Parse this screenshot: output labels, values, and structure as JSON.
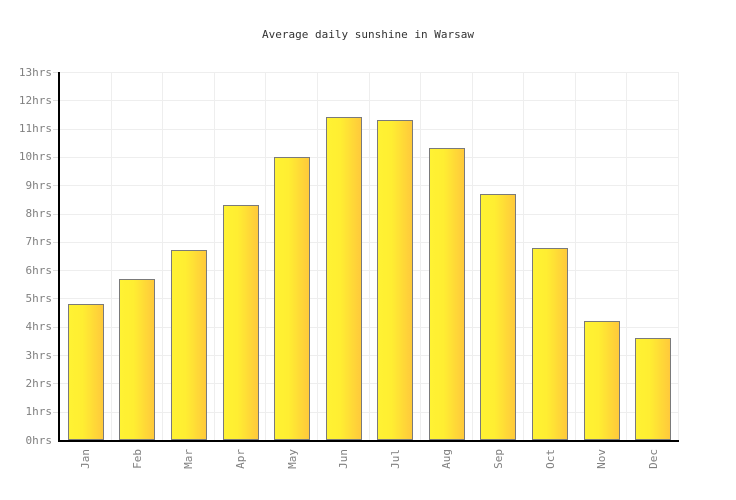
{
  "chart_data": {
    "type": "bar",
    "title": "Average daily sunshine in Warsaw",
    "categories": [
      "Jan",
      "Feb",
      "Mar",
      "Apr",
      "May",
      "Jun",
      "Jul",
      "Aug",
      "Sep",
      "Oct",
      "Nov",
      "Dec"
    ],
    "values": [
      4.8,
      5.7,
      6.7,
      8.3,
      10.0,
      11.4,
      11.3,
      10.3,
      8.7,
      6.8,
      4.2,
      3.6
    ],
    "unit": "hrs",
    "y_tick_labels": [
      "0hrs",
      "1hrs",
      "2hrs",
      "3hrs",
      "4hrs",
      "5hrs",
      "6hrs",
      "7hrs",
      "8hrs",
      "9hrs",
      "10hrs",
      "11hrs",
      "12hrs",
      "13hrs"
    ],
    "ylim": [
      0,
      13
    ],
    "grid": true,
    "legend": "none",
    "colors": {
      "bar_gradient_left": "#FFF233",
      "bar_gradient_right": "#FFC93B",
      "bar_border": "#7A7A7A",
      "axis": "#000000",
      "gridline": "#EEEEEE",
      "tick_label": "#808080",
      "title": "#333333",
      "background": "#FFFFFF"
    }
  }
}
